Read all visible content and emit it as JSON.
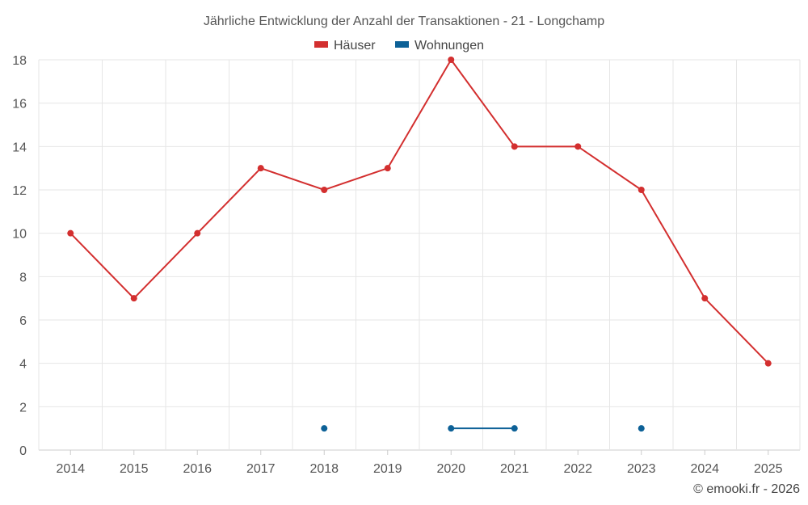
{
  "chart_data": {
    "type": "line",
    "title": "Jährliche Entwicklung der Anzahl der Transaktionen - 21 - Longchamp",
    "x": [
      "2014",
      "2015",
      "2016",
      "2017",
      "2018",
      "2019",
      "2020",
      "2021",
      "2022",
      "2023",
      "2024",
      "2025"
    ],
    "series": [
      {
        "name": "Häuser",
        "color": "#d32f2f",
        "values": [
          10,
          7,
          10,
          13,
          12,
          13,
          18,
          14,
          14,
          12,
          7,
          4
        ]
      },
      {
        "name": "Wohnungen",
        "color": "#0d6197",
        "values": [
          null,
          null,
          null,
          null,
          1,
          null,
          1,
          1,
          null,
          1,
          null,
          null
        ]
      }
    ],
    "ylim": [
      0,
      18
    ],
    "yticks": [
      0,
      2,
      4,
      6,
      8,
      10,
      12,
      14,
      16,
      18
    ],
    "grid": true,
    "legend_position": "top-center",
    "credit": "© emooki.fr - 2026"
  }
}
